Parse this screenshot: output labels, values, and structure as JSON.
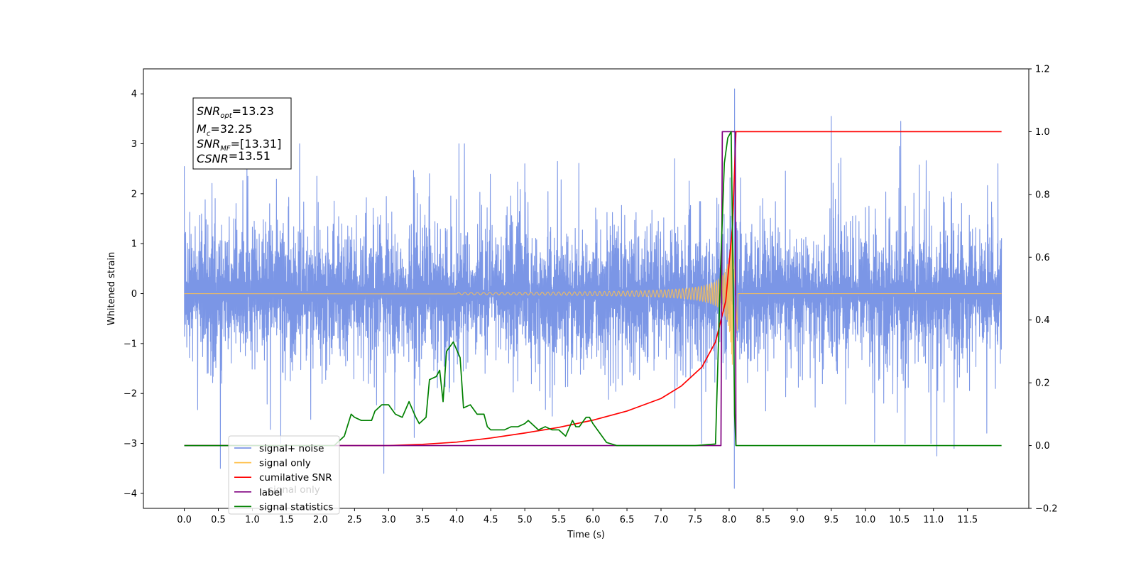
{
  "chart_data": {
    "type": "line",
    "title": "",
    "xlabel": "Time (s)",
    "ylabel": "Whitened strain",
    "ylabel_right": "",
    "xlim": [
      -0.6,
      12.4
    ],
    "ylim": [
      -4.3,
      4.5
    ],
    "ylim_right": [
      -0.2,
      1.2
    ],
    "x_ticks": [
      0.0,
      0.5,
      1.0,
      1.5,
      2.0,
      2.5,
      3.0,
      3.5,
      4.0,
      4.5,
      5.0,
      5.5,
      6.0,
      6.5,
      7.0,
      7.5,
      8.0,
      8.5,
      9.0,
      9.5,
      10.0,
      10.5,
      11.0,
      11.5
    ],
    "x_tick_labels": [
      "0.0",
      "0.5",
      "1.0",
      "1.5",
      "2.0",
      "2.5",
      "3.0",
      "3.5",
      "4.0",
      "4.5",
      "5.0",
      "5.5",
      "6.0",
      "6.5",
      "7.0",
      "7.5",
      "8.0",
      "8.5",
      "9.0",
      "9.5",
      "10.0",
      "10.5",
      "11.0",
      "11.5"
    ],
    "y_ticks": [
      -4,
      -3,
      -2,
      -1,
      0,
      1,
      2,
      3,
      4
    ],
    "y_tick_labels": [
      "−4",
      "−3",
      "−2",
      "−1",
      "0",
      "1",
      "2",
      "3",
      "4"
    ],
    "y_right_ticks": [
      -0.2,
      0.0,
      0.2,
      0.4,
      0.6,
      0.8,
      1.0,
      1.2
    ],
    "y_right_tick_labels": [
      "−0.2",
      "0.0",
      "0.2",
      "0.4",
      "0.6",
      "0.8",
      "1.0",
      "1.2"
    ],
    "grid": false,
    "legend_position": "lower-left",
    "series": [
      {
        "name": "signal+ noise",
        "axis": "left",
        "color": "#7b96e6",
        "kind": "noise_band",
        "x_range": [
          0.0,
          12.0
        ],
        "typical_amplitude": 1.35,
        "max_peaks": [
          {
            "x": 0.0,
            "y": 2.55
          },
          {
            "x": 0.53,
            "y": -3.5
          },
          {
            "x": 0.92,
            "y": 2.6
          },
          {
            "x": 1.42,
            "y": -3.0
          },
          {
            "x": 1.95,
            "y": 2.35
          },
          {
            "x": 2.93,
            "y": -3.6
          },
          {
            "x": 3.6,
            "y": 2.4
          },
          {
            "x": 5.0,
            "y": 2.6
          },
          {
            "x": 7.2,
            "y": 2.7
          },
          {
            "x": 8.08,
            "y": 4.1
          },
          {
            "x": 8.08,
            "y": -3.9
          },
          {
            "x": 9.5,
            "y": 3.55
          },
          {
            "x": 10.52,
            "y": 3.45
          },
          {
            "x": 11.05,
            "y": -3.25
          },
          {
            "x": 11.3,
            "y": -3.1
          },
          {
            "x": 11.95,
            "y": 2.6
          }
        ]
      },
      {
        "name": "signal only",
        "axis": "left",
        "color": "#ffc14d",
        "kind": "chirp",
        "start_x": 4.0,
        "merger_x": 8.05,
        "end_x": 8.12,
        "peak_amplitude": 1.85,
        "after_merger_value": 0.0
      },
      {
        "name": "cumilative SNR",
        "axis": "right",
        "color": "#ff0000",
        "x": [
          0.0,
          3.0,
          3.5,
          4.0,
          4.5,
          5.0,
          5.5,
          6.0,
          6.5,
          7.0,
          7.3,
          7.6,
          7.8,
          7.95,
          8.05,
          8.1,
          12.0
        ],
        "y": [
          0.0,
          0.0,
          0.004,
          0.011,
          0.024,
          0.04,
          0.058,
          0.081,
          0.11,
          0.15,
          0.19,
          0.25,
          0.33,
          0.46,
          0.7,
          1.0,
          1.0
        ]
      },
      {
        "name": "label",
        "axis": "right",
        "color": "#800080",
        "x": [
          0.0,
          7.88,
          7.9,
          8.09,
          8.1
        ],
        "y": [
          0.0,
          0.0,
          1.0,
          1.0,
          0.0
        ]
      },
      {
        "name": "signal statistics",
        "axis": "right",
        "color": "#008000",
        "x": [
          0.0,
          2.2,
          2.35,
          2.45,
          2.5,
          2.6,
          2.75,
          2.8,
          2.9,
          3.0,
          3.1,
          3.2,
          3.3,
          3.4,
          3.45,
          3.55,
          3.6,
          3.7,
          3.75,
          3.8,
          3.85,
          3.95,
          4.05,
          4.1,
          4.2,
          4.3,
          4.4,
          4.45,
          4.5,
          4.6,
          4.7,
          4.8,
          4.9,
          5.0,
          5.05,
          5.1,
          5.2,
          5.3,
          5.4,
          5.5,
          5.6,
          5.7,
          5.75,
          5.8,
          5.9,
          5.95,
          6.0,
          6.1,
          6.2,
          6.35,
          6.5,
          7.5,
          7.8,
          7.88,
          7.93,
          7.98,
          8.03,
          8.06,
          8.08,
          8.1,
          12.0
        ],
        "y": [
          0.0,
          0.0,
          0.03,
          0.1,
          0.09,
          0.08,
          0.08,
          0.11,
          0.13,
          0.13,
          0.1,
          0.09,
          0.14,
          0.09,
          0.07,
          0.09,
          0.21,
          0.22,
          0.24,
          0.14,
          0.3,
          0.33,
          0.28,
          0.12,
          0.13,
          0.1,
          0.1,
          0.06,
          0.05,
          0.05,
          0.05,
          0.06,
          0.06,
          0.07,
          0.08,
          0.07,
          0.05,
          0.06,
          0.05,
          0.05,
          0.03,
          0.08,
          0.06,
          0.06,
          0.09,
          0.09,
          0.07,
          0.04,
          0.01,
          0.0,
          0.0,
          0.0,
          0.005,
          0.6,
          0.9,
          0.98,
          1.0,
          0.5,
          0.1,
          0.0,
          0.0
        ]
      }
    ],
    "legend_overlap_text": "signal only",
    "annotation": {
      "lines": [
        {
          "main": "SNR",
          "sub": "opt",
          "rest": "=13.23"
        },
        {
          "main": "M",
          "sub": "c",
          "rest": "=32.25"
        },
        {
          "main": "SNR",
          "sub": "MF",
          "rest": "=[13.31]"
        },
        {
          "main": "CSNR",
          "sub": "",
          "rest": "=13.51"
        }
      ]
    }
  }
}
